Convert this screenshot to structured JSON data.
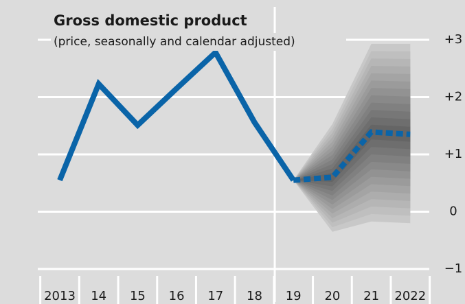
{
  "chart_data": {
    "type": "line",
    "title": "Gross domestic product",
    "subtitle": "(price, seasonally and calendar adjusted)",
    "categories": [
      "2013",
      "14",
      "15",
      "16",
      "17",
      "18",
      "19",
      "20",
      "21",
      "2022"
    ],
    "values": [
      0.55,
      2.23,
      1.51,
      2.15,
      2.78,
      1.56,
      0.55,
      null,
      null,
      null
    ],
    "forecast": [
      null,
      null,
      null,
      null,
      null,
      null,
      0.55,
      0.6,
      1.39,
      1.35
    ],
    "fan": {
      "upper": [
        null,
        null,
        null,
        null,
        null,
        null,
        0.55,
        1.53,
        2.93,
        2.93
      ],
      "lower": [
        null,
        null,
        null,
        null,
        null,
        null,
        0.55,
        -0.35,
        -0.17,
        -0.2
      ]
    },
    "color": "#0a64a8",
    "ylim": [
      -1,
      3
    ],
    "yticks": [
      {
        "value": -1,
        "label": "−1"
      },
      0,
      {
        "value": 1,
        "label": "+1"
      },
      {
        "value": 2,
        "label": "+2"
      },
      {
        "value": 3,
        "label": "+3"
      }
    ],
    "grid": true
  }
}
